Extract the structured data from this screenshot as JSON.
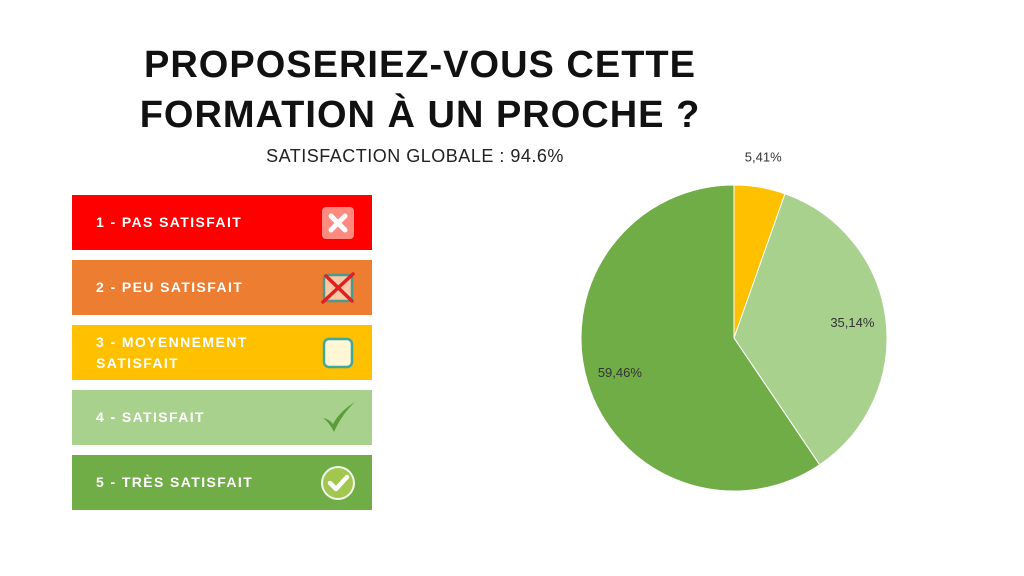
{
  "title_line1": "PROPOSERIEZ-VOUS CETTE",
  "title_line2": "FORMATION À UN PROCHE ?",
  "subtitle": "SATISFACTION GLOBALE : 94.6%",
  "legend": [
    {
      "label": "1 - PAS SATISFAIT",
      "color": "#ff0000",
      "icon": "x-box-icon"
    },
    {
      "label": "2 - PEU SATISFAIT",
      "color": "#ed7d31",
      "icon": "crossed-checkbox-icon"
    },
    {
      "label": "3 - MOYENNEMENT SATISFAIT",
      "color": "#ffc000",
      "icon": "empty-checkbox-icon"
    },
    {
      "label": "4 - SATISFAIT",
      "color": "#a9d18e",
      "icon": "checkmark-icon"
    },
    {
      "label": "5 - TRÈS SATISFAIT",
      "color": "#70ad47",
      "icon": "check-circle-icon"
    }
  ],
  "chart_data": {
    "type": "pie",
    "slices": [
      {
        "category": "3 - MOYENNEMENT SATISFAIT",
        "value": 5.41,
        "label": "5,41%",
        "color": "#ffc000"
      },
      {
        "category": "4 - SATISFAIT",
        "value": 35.14,
        "label": "35,14%",
        "color": "#a9d18e"
      },
      {
        "category": "5 - TRÈS SATISFAIT",
        "value": 59.46,
        "label": "59,46%",
        "color": "#70ad47"
      }
    ],
    "start": "top",
    "direction": "clockwise"
  }
}
